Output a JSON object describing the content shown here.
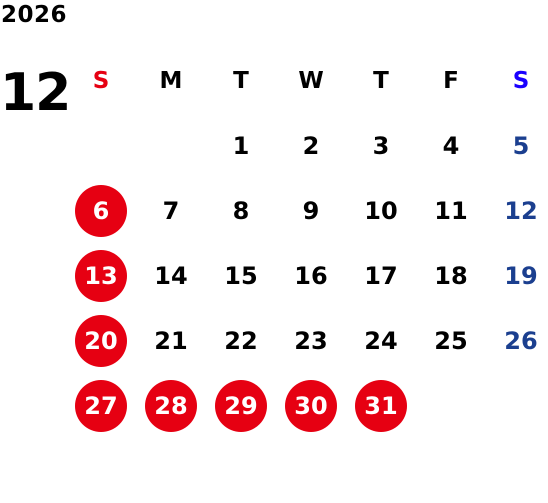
{
  "year": "2026",
  "month": "12",
  "colors": {
    "sunday": "#e60012",
    "saturday_header": "#1a00ff",
    "saturday_dates": "#1b3f8f",
    "holiday_circle": "#e60012"
  },
  "weekdays": [
    "S",
    "M",
    "T",
    "W",
    "T",
    "F",
    "S"
  ],
  "days": [
    {
      "label": "",
      "type": "empty"
    },
    {
      "label": "",
      "type": "empty"
    },
    {
      "label": "1",
      "type": "normal"
    },
    {
      "label": "2",
      "type": "normal"
    },
    {
      "label": "3",
      "type": "normal"
    },
    {
      "label": "4",
      "type": "normal"
    },
    {
      "label": "5",
      "type": "sat"
    },
    {
      "label": "6",
      "type": "holiday"
    },
    {
      "label": "7",
      "type": "normal"
    },
    {
      "label": "8",
      "type": "normal"
    },
    {
      "label": "9",
      "type": "normal"
    },
    {
      "label": "10",
      "type": "normal"
    },
    {
      "label": "11",
      "type": "normal"
    },
    {
      "label": "12",
      "type": "sat"
    },
    {
      "label": "13",
      "type": "holiday"
    },
    {
      "label": "14",
      "type": "normal"
    },
    {
      "label": "15",
      "type": "normal"
    },
    {
      "label": "16",
      "type": "normal"
    },
    {
      "label": "17",
      "type": "normal"
    },
    {
      "label": "18",
      "type": "normal"
    },
    {
      "label": "19",
      "type": "sat"
    },
    {
      "label": "20",
      "type": "holiday"
    },
    {
      "label": "21",
      "type": "normal"
    },
    {
      "label": "22",
      "type": "normal"
    },
    {
      "label": "23",
      "type": "normal"
    },
    {
      "label": "24",
      "type": "normal"
    },
    {
      "label": "25",
      "type": "normal"
    },
    {
      "label": "26",
      "type": "sat"
    },
    {
      "label": "27",
      "type": "holiday"
    },
    {
      "label": "28",
      "type": "holiday"
    },
    {
      "label": "29",
      "type": "holiday"
    },
    {
      "label": "30",
      "type": "holiday"
    },
    {
      "label": "31",
      "type": "holiday"
    }
  ]
}
